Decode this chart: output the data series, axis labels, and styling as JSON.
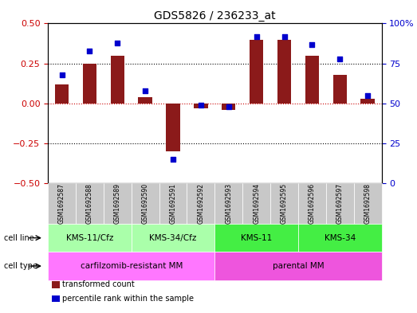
{
  "title": "GDS5826 / 236233_at",
  "samples": [
    "GSM1692587",
    "GSM1692588",
    "GSM1692589",
    "GSM1692590",
    "GSM1692591",
    "GSM1692592",
    "GSM1692593",
    "GSM1692594",
    "GSM1692595",
    "GSM1692596",
    "GSM1692597",
    "GSM1692598"
  ],
  "transformed_count": [
    0.12,
    0.25,
    0.3,
    0.04,
    -0.3,
    -0.03,
    -0.04,
    0.4,
    0.4,
    0.3,
    0.18,
    0.03
  ],
  "percentile_rank": [
    68,
    83,
    88,
    58,
    15,
    49,
    48,
    92,
    92,
    87,
    78,
    55
  ],
  "bar_color": "#8B1A1A",
  "dot_color": "#0000CD",
  "ylim_left": [
    -0.5,
    0.5
  ],
  "ylim_right": [
    0,
    100
  ],
  "yticks_left": [
    -0.5,
    -0.25,
    0,
    0.25,
    0.5
  ],
  "yticks_right": [
    0,
    25,
    50,
    75,
    100
  ],
  "hlines_dotted": [
    -0.25,
    0.25
  ],
  "hline_red": 0,
  "cell_line_groups": [
    {
      "label": "KMS-11/Cfz",
      "start": 0,
      "end": 3,
      "color": "#AAFFAA"
    },
    {
      "label": "KMS-34/Cfz",
      "start": 3,
      "end": 6,
      "color": "#AAFFAA"
    },
    {
      "label": "KMS-11",
      "start": 6,
      "end": 9,
      "color": "#44EE44"
    },
    {
      "label": "KMS-34",
      "start": 9,
      "end": 12,
      "color": "#44EE44"
    }
  ],
  "cell_type_groups": [
    {
      "label": "carfilzomib-resistant MM",
      "start": 0,
      "end": 6,
      "color": "#FF77FF"
    },
    {
      "label": "parental MM",
      "start": 6,
      "end": 12,
      "color": "#EE55DD"
    }
  ],
  "cell_line_label": "cell line",
  "cell_type_label": "cell type",
  "legend_items": [
    {
      "color": "#8B1A1A",
      "label": "transformed count"
    },
    {
      "color": "#0000CD",
      "label": "percentile rank within the sample"
    }
  ],
  "background_color": "#ffffff",
  "plot_bg": "#ffffff",
  "tick_color_left": "#CC0000",
  "tick_color_right": "#0000CC",
  "sample_box_color": "#C8C8C8"
}
